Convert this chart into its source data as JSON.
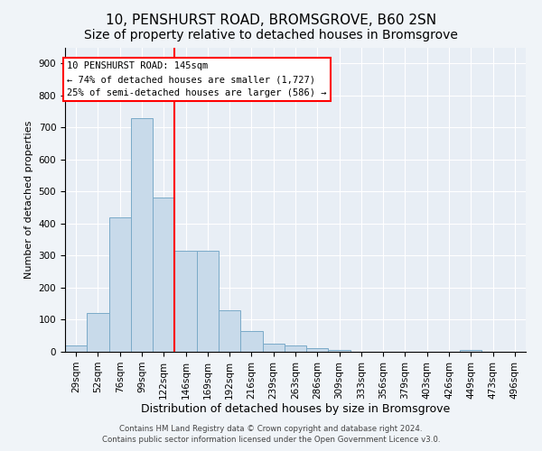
{
  "title": "10, PENSHURST ROAD, BROMSGROVE, B60 2SN",
  "subtitle": "Size of property relative to detached houses in Bromsgrove",
  "xlabel": "Distribution of detached houses by size in Bromsgrove",
  "ylabel": "Number of detached properties",
  "bar_labels": [
    "29sqm",
    "52sqm",
    "76sqm",
    "99sqm",
    "122sqm",
    "146sqm",
    "169sqm",
    "192sqm",
    "216sqm",
    "239sqm",
    "263sqm",
    "286sqm",
    "309sqm",
    "333sqm",
    "356sqm",
    "379sqm",
    "403sqm",
    "426sqm",
    "449sqm",
    "473sqm",
    "496sqm"
  ],
  "bar_values": [
    20,
    120,
    420,
    730,
    480,
    315,
    315,
    130,
    65,
    25,
    20,
    10,
    5,
    0,
    0,
    0,
    0,
    0,
    5,
    0,
    0
  ],
  "bar_color": "#c8daea",
  "bar_edge_color": "#7aaac8",
  "ylim": [
    0,
    950
  ],
  "yticks": [
    0,
    100,
    200,
    300,
    400,
    500,
    600,
    700,
    800,
    900
  ],
  "red_line_x": 4.5,
  "annotation_line1": "10 PENSHURST ROAD: 145sqm",
  "annotation_line2": "← 74% of detached houses are smaller (1,727)",
  "annotation_line3": "25% of semi-detached houses are larger (586) →",
  "footer_line1": "Contains HM Land Registry data © Crown copyright and database right 2024.",
  "footer_line2": "Contains public sector information licensed under the Open Government Licence v3.0.",
  "title_fontsize": 11,
  "subtitle_fontsize": 10,
  "xlabel_fontsize": 9,
  "ylabel_fontsize": 8,
  "tick_fontsize": 7.5,
  "background_color": "#f0f4f8",
  "plot_background_color": "#e8eef5"
}
